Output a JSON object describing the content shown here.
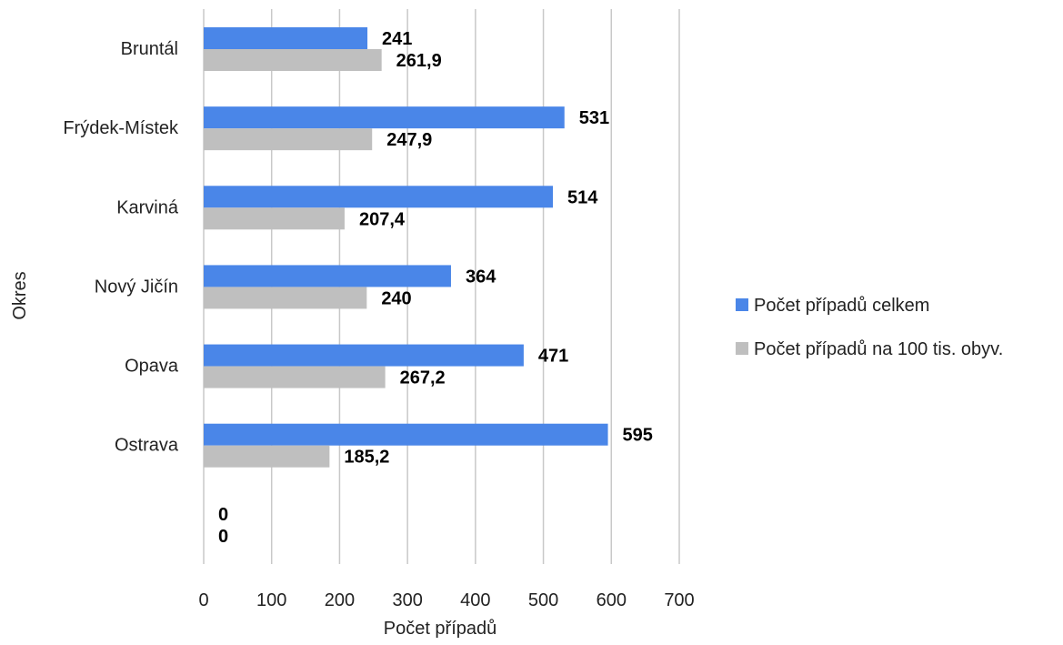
{
  "chart_data": {
    "type": "bar",
    "orientation": "horizontal",
    "categories": [
      "Bruntál",
      "Frýdek-Místek",
      "Karviná",
      "Nový Jičín",
      "Opava",
      "Ostrava",
      ""
    ],
    "series": [
      {
        "name": "Počet případů celkem",
        "color": "#4a86e8",
        "values": [
          241,
          531,
          514,
          364,
          471,
          595,
          0
        ],
        "labels": [
          "241",
          "531",
          "514",
          "364",
          "471",
          "595",
          "0"
        ]
      },
      {
        "name": "Počet případů na 100 tis. obyv.",
        "color": "#bfbfbf",
        "values": [
          261.9,
          247.9,
          207.4,
          240,
          267.2,
          185.2,
          0
        ],
        "labels": [
          "261,9",
          "247,9",
          "207,4",
          "240",
          "267,2",
          "185,2",
          "0"
        ]
      }
    ],
    "xlabel": "Počet případů",
    "ylabel": "Okres",
    "xlim": [
      0,
      700
    ],
    "xticks": [
      0,
      100,
      200,
      300,
      400,
      500,
      600,
      700
    ],
    "grid": "vertical",
    "legend_position": "right"
  }
}
